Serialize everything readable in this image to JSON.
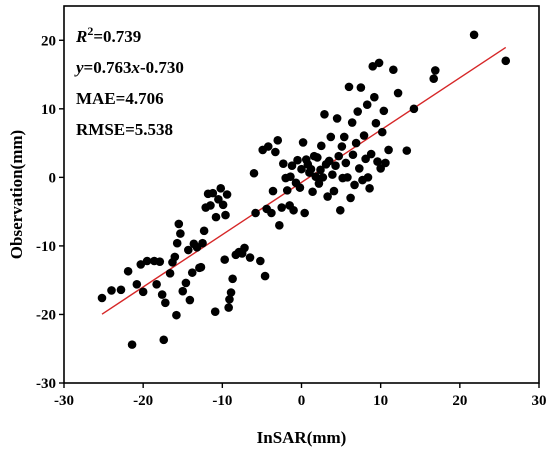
{
  "chart_data": {
    "type": "scatter",
    "xlabel": "InSAR(mm)",
    "ylabel": "Observation(mm)",
    "xlim": [
      -30,
      30
    ],
    "ylim": [
      -30,
      25
    ],
    "xticks": [
      -30,
      -20,
      -10,
      0,
      10,
      20,
      30
    ],
    "yticks": [
      -30,
      -20,
      -10,
      0,
      10,
      20
    ],
    "grid": false,
    "point_color": "#000000",
    "fit_line_color": "#d62728",
    "annotations": {
      "r2_prefix": "R",
      "r2_sup": "2",
      "r2_value": "=0.739",
      "eq_y": "y",
      "eq_mid": "=0.763",
      "eq_x": "x",
      "eq_tail": "-0.730",
      "mae": "MAE=4.706",
      "rmse": "RMSE=5.538"
    },
    "fit_line": {
      "slope": 0.763,
      "intercept": -0.73,
      "x_range": [
        -25.2,
        25.8
      ]
    },
    "points": [
      [
        -25.2,
        -17.6
      ],
      [
        -24.0,
        -16.5
      ],
      [
        -22.8,
        -16.4
      ],
      [
        -21.9,
        -13.7
      ],
      [
        -21.4,
        -24.4
      ],
      [
        -20.8,
        -15.6
      ],
      [
        -20.3,
        -12.7
      ],
      [
        -20.0,
        -16.7
      ],
      [
        -19.5,
        -12.2
      ],
      [
        -18.6,
        -12.2
      ],
      [
        -18.3,
        -15.6
      ],
      [
        -17.9,
        -12.3
      ],
      [
        -17.6,
        -17.1
      ],
      [
        -17.4,
        -23.7
      ],
      [
        -17.2,
        -18.3
      ],
      [
        -16.6,
        -14.0
      ],
      [
        -16.3,
        -12.4
      ],
      [
        -16.0,
        -11.6
      ],
      [
        -15.8,
        -20.1
      ],
      [
        -15.7,
        -9.6
      ],
      [
        -15.5,
        -6.8
      ],
      [
        -15.3,
        -8.2
      ],
      [
        -15.0,
        -16.6
      ],
      [
        -14.6,
        -15.4
      ],
      [
        -14.3,
        -10.6
      ],
      [
        -14.1,
        -17.9
      ],
      [
        -13.8,
        -13.9
      ],
      [
        -13.6,
        -9.7
      ],
      [
        -13.2,
        -10.2
      ],
      [
        -12.9,
        -13.2
      ],
      [
        -12.7,
        -13.1
      ],
      [
        -12.5,
        -9.6
      ],
      [
        -12.3,
        -7.8
      ],
      [
        -12.1,
        -4.4
      ],
      [
        -11.8,
        -2.4
      ],
      [
        -11.5,
        -4.1
      ],
      [
        -11.2,
        -2.3
      ],
      [
        -10.9,
        -19.6
      ],
      [
        -10.8,
        -5.8
      ],
      [
        -10.5,
        -3.2
      ],
      [
        -10.2,
        -1.6
      ],
      [
        -9.9,
        -4.0
      ],
      [
        -9.7,
        -12.0
      ],
      [
        -9.6,
        -5.5
      ],
      [
        -9.4,
        -2.5
      ],
      [
        -9.2,
        -19.0
      ],
      [
        -9.1,
        -17.8
      ],
      [
        -8.9,
        -16.8
      ],
      [
        -8.7,
        -14.8
      ],
      [
        -8.3,
        -11.3
      ],
      [
        -7.9,
        -10.9
      ],
      [
        -7.5,
        -11.1
      ],
      [
        -7.2,
        -10.3
      ],
      [
        -6.5,
        -11.7
      ],
      [
        -6.0,
        0.6
      ],
      [
        -5.8,
        -5.2
      ],
      [
        -5.2,
        -12.2
      ],
      [
        -4.9,
        4.0
      ],
      [
        -4.6,
        -14.4
      ],
      [
        -4.4,
        -4.6
      ],
      [
        -4.2,
        4.5
      ],
      [
        -3.8,
        -5.2
      ],
      [
        -3.6,
        -2.0
      ],
      [
        -3.3,
        3.7
      ],
      [
        -3.0,
        5.4
      ],
      [
        -2.8,
        -7.0
      ],
      [
        -2.5,
        -4.4
      ],
      [
        -2.3,
        2.0
      ],
      [
        -2.0,
        -0.1
      ],
      [
        -1.8,
        -1.9
      ],
      [
        -1.5,
        -4.1
      ],
      [
        -1.4,
        0.1
      ],
      [
        -1.2,
        1.7
      ],
      [
        -1.0,
        -4.8
      ],
      [
        -0.7,
        -0.8
      ],
      [
        -0.5,
        2.5
      ],
      [
        -0.2,
        -1.5
      ],
      [
        0.0,
        1.2
      ],
      [
        0.2,
        5.1
      ],
      [
        0.4,
        -5.2
      ],
      [
        0.6,
        2.6
      ],
      [
        0.8,
        1.9
      ],
      [
        1.0,
        0.7
      ],
      [
        1.2,
        1.2
      ],
      [
        1.4,
        -2.1
      ],
      [
        1.6,
        3.1
      ],
      [
        1.8,
        0.1
      ],
      [
        2.0,
        2.9
      ],
      [
        2.2,
        -0.9
      ],
      [
        2.4,
        1.1
      ],
      [
        2.5,
        4.6
      ],
      [
        2.7,
        0.0
      ],
      [
        2.9,
        9.2
      ],
      [
        3.1,
        1.9
      ],
      [
        3.3,
        -2.8
      ],
      [
        3.5,
        2.4
      ],
      [
        3.7,
        5.9
      ],
      [
        3.9,
        0.4
      ],
      [
        4.1,
        -2.0
      ],
      [
        4.3,
        1.7
      ],
      [
        4.5,
        8.6
      ],
      [
        4.7,
        3.1
      ],
      [
        4.9,
        -4.8
      ],
      [
        5.1,
        4.5
      ],
      [
        5.2,
        -0.1
      ],
      [
        5.4,
        5.9
      ],
      [
        5.6,
        2.1
      ],
      [
        5.8,
        0.0
      ],
      [
        6.0,
        13.2
      ],
      [
        6.2,
        -3.0
      ],
      [
        6.4,
        8.0
      ],
      [
        6.5,
        3.3
      ],
      [
        6.7,
        -1.1
      ],
      [
        6.9,
        5.0
      ],
      [
        7.1,
        9.6
      ],
      [
        7.3,
        1.3
      ],
      [
        7.5,
        13.1
      ],
      [
        7.7,
        -0.4
      ],
      [
        7.9,
        6.1
      ],
      [
        8.1,
        2.7
      ],
      [
        8.3,
        10.6
      ],
      [
        8.4,
        0.0
      ],
      [
        8.6,
        -1.6
      ],
      [
        8.8,
        3.4
      ],
      [
        9.0,
        16.2
      ],
      [
        9.2,
        11.7
      ],
      [
        9.4,
        7.9
      ],
      [
        9.6,
        2.3
      ],
      [
        9.8,
        16.7
      ],
      [
        10.0,
        1.3
      ],
      [
        10.2,
        6.6
      ],
      [
        10.4,
        9.7
      ],
      [
        10.6,
        2.1
      ],
      [
        11.0,
        4.0
      ],
      [
        11.6,
        15.7
      ],
      [
        12.2,
        12.3
      ],
      [
        13.3,
        3.9
      ],
      [
        14.2,
        10.0
      ],
      [
        16.7,
        14.4
      ],
      [
        16.9,
        15.6
      ],
      [
        21.8,
        20.8
      ],
      [
        25.8,
        17.0
      ]
    ]
  }
}
